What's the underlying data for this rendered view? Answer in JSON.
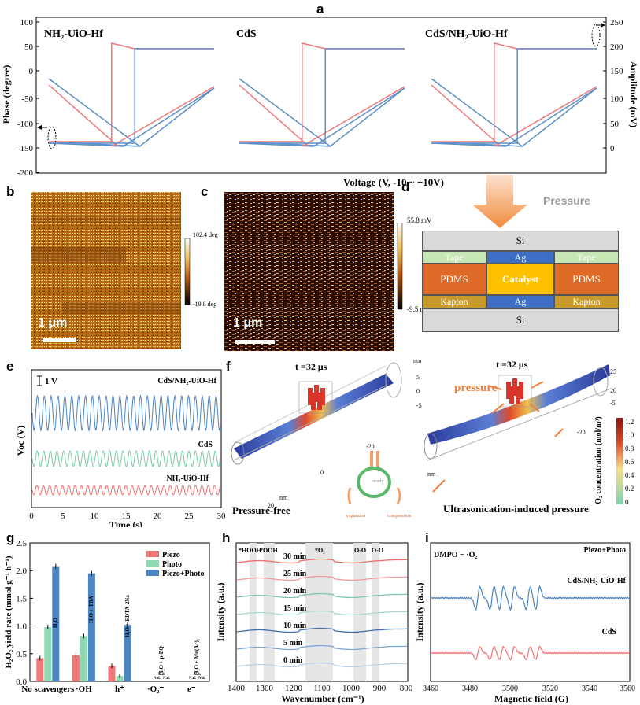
{
  "panels": {
    "a": "a",
    "b": "b",
    "c": "c",
    "d": "d",
    "e": "e",
    "f": "f",
    "g": "g",
    "h": "h",
    "i": "i"
  },
  "panel_a": {
    "samples": [
      "NH₂-UiO-Hf",
      "CdS",
      "CdS/NH₂-UiO-Hf"
    ],
    "ylabel_left": "Phase (degree)",
    "ylabel_right": "Amplitude (mV)",
    "xlabel": "Voltage (V, -10 ~ +10V)",
    "left_ticks": [
      "100",
      "50",
      "0",
      "-50",
      "-100",
      "-150",
      "-200"
    ],
    "right_ticks": [
      "250",
      "200",
      "150",
      "100",
      "50",
      "0"
    ],
    "colors": {
      "phase": "#f0787a",
      "amplitude": "#5b8fc8"
    }
  },
  "panel_b": {
    "colorbar_top": "102.4 deg",
    "colorbar_bottom": "-19.8 deg",
    "scalebar": "1 μm"
  },
  "panel_c": {
    "colorbar_top": "55.8 mV",
    "colorbar_bottom": "-9.5 mV",
    "scalebar": "1 μm"
  },
  "panel_d": {
    "arrow_label": "Pressure",
    "layers": {
      "top": "Si",
      "tape_left": "Tape",
      "ag_top": "Ag",
      "tape_right": "Tape",
      "pdms_left": "PDMS",
      "catalyst": "Catalyst",
      "pdms_right": "PDMS",
      "kapton_left": "Kapton",
      "ag_bottom": "Ag",
      "kapton_right": "Kapton",
      "bottom": "Si"
    }
  },
  "panel_e": {
    "scale": "1 V",
    "ylabel": "Voc (V)",
    "xlabel": "Time (s)",
    "x_ticks": [
      "0",
      "5",
      "10",
      "15",
      "20",
      "25",
      "30"
    ],
    "series": [
      {
        "name": "CdS/NH₂-UiO-Hf",
        "color": "#4a84c0"
      },
      {
        "name": "CdS",
        "color": "#7ccaa4"
      },
      {
        "name": "NH₂-UiO-Hf",
        "color": "#f07272"
      }
    ]
  },
  "panel_f": {
    "time_left": "t =32 μs",
    "time_right": "t =32 μs",
    "caption_left": "Pressure-free",
    "caption_right": "Ultrasonication-induced pressure",
    "pressure_label": "pressure",
    "cycle_labels": [
      "steady",
      "expansion",
      "compression"
    ],
    "colorbar_title": "O₂ concentration (mol/m³)",
    "colorbar_ticks": [
      "1.2",
      "1.0",
      "0.8",
      "0.6",
      "0.4",
      "0.2",
      "0"
    ],
    "axis_labels": [
      "nm",
      "5",
      "0",
      "-5",
      "0",
      "-20",
      "20",
      "nm",
      "25",
      "20",
      "-20",
      "-5",
      "nm"
    ]
  },
  "panel_g": {
    "chart_data": {
      "type": "bar",
      "categories": [
        "No scavengers",
        "·OH",
        "h⁺",
        "·O₂⁻",
        "e⁻"
      ],
      "series": [
        {
          "name": "Piezo",
          "values": [
            0.42,
            0.48,
            0.28,
            0,
            0
          ],
          "color": "#f07878"
        },
        {
          "name": "Photo",
          "values": [
            0.98,
            0.82,
            0.1,
            0,
            0
          ],
          "color": "#8fd8b0"
        },
        {
          "name": "Piezo+Photo",
          "values": [
            2.08,
            1.95,
            1.02,
            0,
            0
          ],
          "color": "#4d85c2"
        }
      ],
      "annotations": [
        "H₂O",
        "H₂O + TBA",
        "H₂O + EDTA-2Na",
        "H₂O + p-BQ",
        "H₂O + Mn(Ac)₂",
        "N.d.",
        "N.d.",
        "N.d.",
        "N.d.",
        "N.d.",
        "N.d."
      ],
      "ylabel": "H₂O₂ yield rate (mmol g⁻¹ h⁻¹)",
      "ylim": [
        0,
        2.5
      ],
      "y_ticks": [
        "0.0",
        "0.5",
        "1.0",
        "1.5",
        "2.0",
        "2.5"
      ]
    }
  },
  "panel_h": {
    "ylabel": "Intensity (a.u.)",
    "xlabel": "Wavenumber (cm⁻¹)",
    "x_ticks": [
      "1400",
      "1300",
      "1200",
      "1100",
      "1000",
      "900",
      "800"
    ],
    "band_labels": [
      "*HOOH",
      "*OOH",
      "*O₂",
      "O-O",
      "O-O"
    ],
    "times": [
      "30 min",
      "25 min",
      "20 min",
      "15 min",
      "10 min",
      "5 min",
      "0 min"
    ],
    "colors": [
      "#f06b6b",
      "#f39a9a",
      "#7ccaa4",
      "#a8dcc0",
      "#3f6fb0",
      "#7ea6d6",
      "#b8d0ec"
    ]
  },
  "panel_i": {
    "title_left": "DMPO − ·O₂",
    "title_right": "Piezo+Photo",
    "ylabel": "Intensity (a.u.)",
    "xlabel": "Magnetic field (G)",
    "x_ticks": [
      "3460",
      "3480",
      "3500",
      "3520",
      "3540",
      "3560"
    ],
    "series": [
      {
        "name": "CdS/NH₂-UiO-Hf",
        "color": "#4a84c0"
      },
      {
        "name": "CdS",
        "color": "#f07272"
      }
    ]
  }
}
